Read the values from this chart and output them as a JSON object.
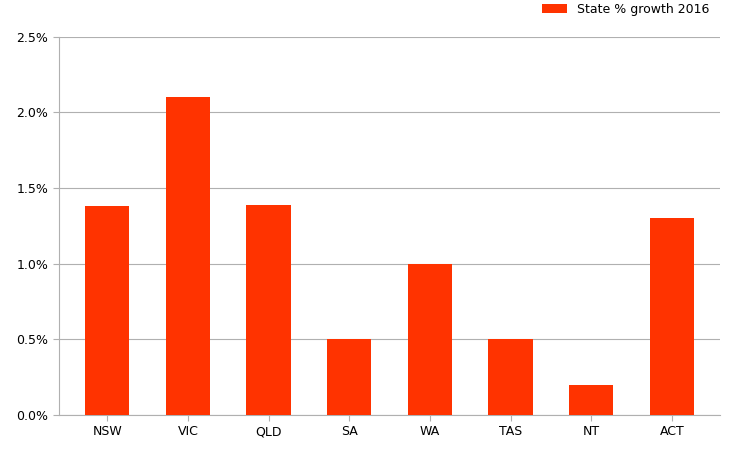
{
  "categories": [
    "NSW",
    "VIC",
    "QLD",
    "SA",
    "WA",
    "TAS",
    "NT",
    "ACT"
  ],
  "values": [
    0.0138,
    0.021,
    0.0139,
    0.005,
    0.01,
    0.005,
    0.002,
    0.013
  ],
  "bar_color": "#FF3300",
  "legend_label": "State % growth 2016",
  "ylim": [
    0,
    0.025
  ],
  "yticks": [
    0.0,
    0.005,
    0.01,
    0.015,
    0.02,
    0.025
  ],
  "ytick_labels": [
    "0.0%",
    "0.5%",
    "1.0%",
    "1.5%",
    "2.0%",
    "2.5%"
  ],
  "background_color": "#ffffff",
  "grid_color": "#b0b0b0",
  "bar_width": 0.55
}
